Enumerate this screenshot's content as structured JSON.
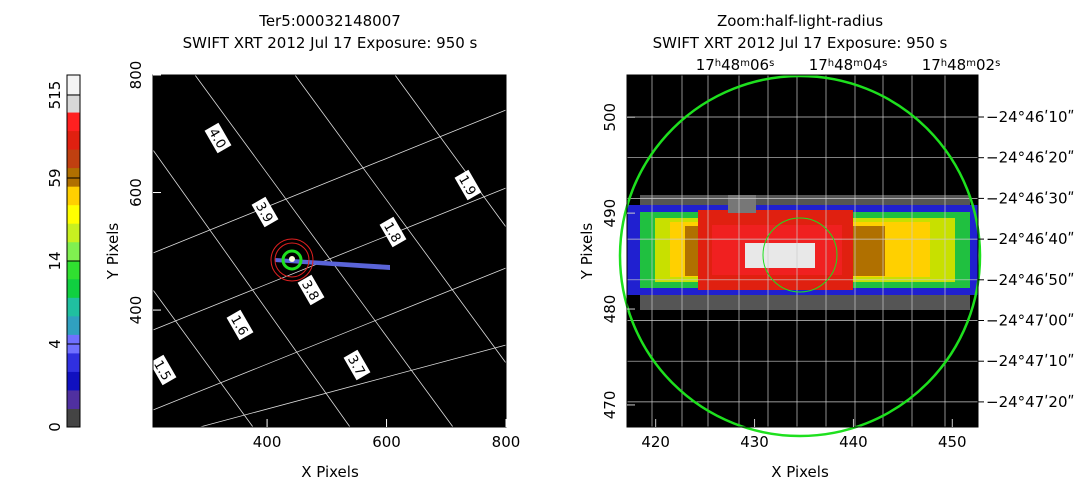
{
  "chart_data": [
    {
      "type": "image",
      "title": [
        "Ter5:00032148007",
        "SWIFT XRT   2012 Jul 17     Exposure: 950 s"
      ],
      "xlabel": "X Pixels",
      "ylabel": "Y Pixels",
      "xlim": [
        209,
        800
      ],
      "ylim": [
        201,
        800
      ],
      "xticks": [
        400,
        600,
        800
      ],
      "yticks": [
        400,
        600,
        800
      ],
      "colorbar_ticks": [
        0,
        4,
        14,
        59,
        515
      ],
      "grid_labels": [
        "4.0",
        "3.9",
        "1.9",
        "1.8",
        "3.8",
        "1.6",
        "1.5",
        "3.7"
      ]
    },
    {
      "type": "image",
      "title": [
        "Zoom:half-light-radius",
        "SWIFT XRT   2012 Jul 17     Exposure: 950 s"
      ],
      "xlabel": "X Pixels",
      "ylabel": "Y Pixels",
      "xlim": [
        417.1,
        452.6
      ],
      "ylim": [
        467.7,
        504.4
      ],
      "xticks": [
        420,
        430,
        440,
        450
      ],
      "yticks": [
        470,
        480,
        490,
        500
      ],
      "ra_labels": [
        [
          "17",
          "h",
          "48",
          "m",
          "06",
          "s"
        ],
        [
          "17",
          "h",
          "48",
          "m",
          "04",
          "s"
        ],
        [
          "17",
          "h",
          "48",
          "m",
          "02",
          "s"
        ]
      ],
      "dec_labels": [
        "−24°46ʹ10ʺ",
        "−24°46ʹ20ʺ",
        "−24°46ʹ30ʺ",
        "−24°46ʹ40ʺ",
        "−24°46ʹ50ʺ",
        "−24°47ʹ00ʺ",
        "−24°47ʹ10ʺ",
        "−24°47ʹ20ʺ"
      ]
    }
  ]
}
